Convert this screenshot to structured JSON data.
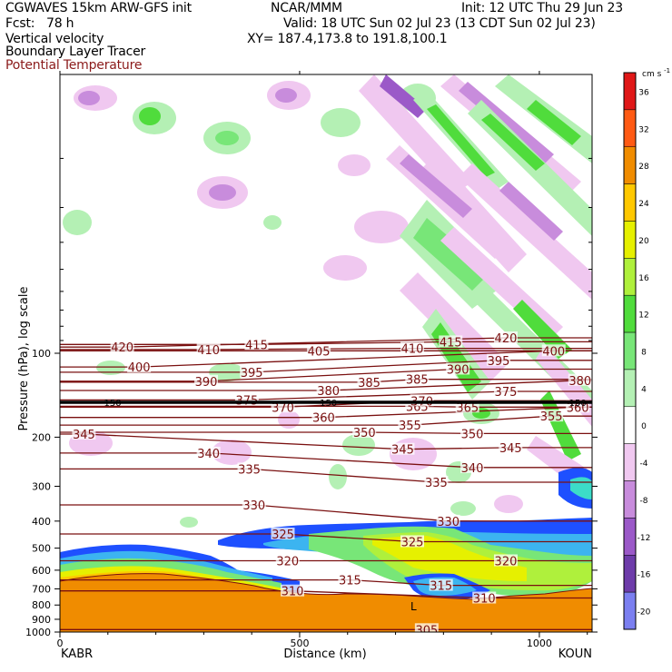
{
  "header": {
    "model": "CGWAVES 15km ARW-GFS init",
    "org": "NCAR/MMM",
    "init": "Init: 12 UTC Thu 29 Jun 23",
    "fcst": "Fcst:   78 h",
    "valid": "Valid: 18 UTC Sun 02 Jul 23 (13 CDT Sun 02 Jul 23)",
    "field1": "Vertical velocity",
    "xy": "XY= 187.4,173.8 to 191.8,100.1",
    "field2": "Boundary Layer Tracer",
    "field3": "Potential Temperature"
  },
  "colors": {
    "theta": "#7a1010",
    "ground": "#f08c00"
  },
  "chart_data": {
    "type": "heatmap",
    "xlabel": "Distance (km)",
    "ylabel": "Pressure (hPa), log scale",
    "x_ticks": [
      "0",
      "500",
      "1000"
    ],
    "x_start_label": "KABR",
    "x_end_label": "KOUN",
    "y_ticks": [
      "100",
      "200",
      "300",
      "400",
      "500",
      "600",
      "700",
      "800",
      "900",
      "1000"
    ],
    "xlim": [
      0,
      1110
    ],
    "ylim_hPa": [
      1000,
      10
    ],
    "colorbar": {
      "unit": "cm s",
      "unit_exp": "-1",
      "levels": [
        {
          "value": "36",
          "color": "#e01818"
        },
        {
          "value": "32",
          "color": "#ff5a14"
        },
        {
          "value": "28",
          "color": "#f08c00"
        },
        {
          "value": "24",
          "color": "#ffc800"
        },
        {
          "value": "20",
          "color": "#e6f000"
        },
        {
          "value": "16",
          "color": "#aff03c"
        },
        {
          "value": "12",
          "color": "#50dc3c"
        },
        {
          "value": "8",
          "color": "#78e678"
        },
        {
          "value": "4",
          "color": "#b4f0b4"
        },
        {
          "value": "0",
          "color": "#ffffff"
        },
        {
          "value": "-4",
          "color": "#f0c8f0"
        },
        {
          "value": "-8",
          "color": "#c88cdc"
        },
        {
          "value": "-12",
          "color": "#9b59c8"
        },
        {
          "value": "-16",
          "color": "#6e3caa"
        },
        {
          "value": "-20",
          "color": "#7b7ff0"
        }
      ]
    },
    "isentrope_labels": [
      {
        "text": "420",
        "x": 130,
        "p": 95
      },
      {
        "text": "410",
        "x": 310,
        "p": 97
      },
      {
        "text": "415",
        "x": 410,
        "p": 93
      },
      {
        "text": "405",
        "x": 540,
        "p": 98
      },
      {
        "text": "410",
        "x": 735,
        "p": 96
      },
      {
        "text": "415",
        "x": 815,
        "p": 91
      },
      {
        "text": "420",
        "x": 930,
        "p": 88
      },
      {
        "text": "400",
        "x": 165,
        "p": 112
      },
      {
        "text": "395",
        "x": 400,
        "p": 117
      },
      {
        "text": "390",
        "x": 305,
        "p": 126
      },
      {
        "text": "380",
        "x": 560,
        "p": 136
      },
      {
        "text": "385",
        "x": 645,
        "p": 127
      },
      {
        "text": "385",
        "x": 745,
        "p": 124
      },
      {
        "text": "390",
        "x": 830,
        "p": 114
      },
      {
        "text": "395",
        "x": 915,
        "p": 106
      },
      {
        "text": "400",
        "x": 1030,
        "p": 98
      },
      {
        "text": "380",
        "x": 1085,
        "p": 125
      },
      {
        "text": "375",
        "x": 390,
        "p": 147
      },
      {
        "text": "370",
        "x": 465,
        "p": 156
      },
      {
        "text": "365",
        "x": 745,
        "p": 155
      },
      {
        "text": "370",
        "x": 755,
        "p": 148
      },
      {
        "text": "375",
        "x": 930,
        "p": 137
      },
      {
        "text": "365",
        "x": 850,
        "p": 156
      },
      {
        "text": "360",
        "x": 550,
        "p": 170
      },
      {
        "text": "360",
        "x": 1080,
        "p": 156
      },
      {
        "text": "355",
        "x": 730,
        "p": 181
      },
      {
        "text": "355",
        "x": 1025,
        "p": 168
      },
      {
        "text": "350",
        "x": 635,
        "p": 192
      },
      {
        "text": "350",
        "x": 860,
        "p": 194
      },
      {
        "text": "345",
        "x": 50,
        "p": 195
      },
      {
        "text": "345",
        "x": 715,
        "p": 221
      },
      {
        "text": "345",
        "x": 940,
        "p": 218
      },
      {
        "text": "340",
        "x": 310,
        "p": 228
      },
      {
        "text": "340",
        "x": 860,
        "p": 257
      },
      {
        "text": "335",
        "x": 395,
        "p": 260
      },
      {
        "text": "335",
        "x": 785,
        "p": 290
      },
      {
        "text": "330",
        "x": 405,
        "p": 350
      },
      {
        "text": "330",
        "x": 810,
        "p": 400
      },
      {
        "text": "325",
        "x": 465,
        "p": 445
      },
      {
        "text": "325",
        "x": 735,
        "p": 474
      },
      {
        "text": "320",
        "x": 475,
        "p": 555
      },
      {
        "text": "320",
        "x": 930,
        "p": 555
      },
      {
        "text": "315",
        "x": 605,
        "p": 650
      },
      {
        "text": "315",
        "x": 795,
        "p": 680
      },
      {
        "text": "310",
        "x": 485,
        "p": 712
      },
      {
        "text": "310",
        "x": 885,
        "p": 755
      },
      {
        "text": "305",
        "x": 765,
        "p": 980
      }
    ],
    "tropopause_level_hPa": 150,
    "tropopause_labels": [
      "150",
      "150",
      "150"
    ],
    "low_marker": "L"
  }
}
